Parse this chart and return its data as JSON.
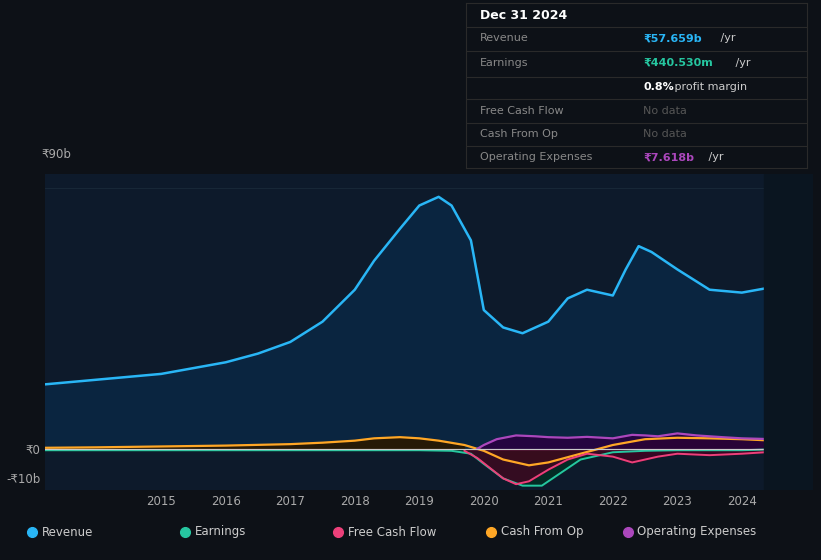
{
  "bg_color": "#0d1117",
  "chart_bg": "#0d1a2b",
  "ylim": [
    -14,
    95
  ],
  "legend": [
    {
      "label": "Revenue",
      "color": "#29b6f6"
    },
    {
      "label": "Earnings",
      "color": "#26c6a0"
    },
    {
      "label": "Free Cash Flow",
      "color": "#ec407a"
    },
    {
      "label": "Cash From Op",
      "color": "#ffa726"
    },
    {
      "label": "Operating Expenses",
      "color": "#ab47bc"
    }
  ],
  "revenue_x": [
    2013.0,
    2013.5,
    2014.0,
    2014.5,
    2015.0,
    2015.5,
    2016.0,
    2016.5,
    2017.0,
    2017.5,
    2018.0,
    2018.3,
    2018.7,
    2019.0,
    2019.3,
    2019.5,
    2019.8,
    2020.0,
    2020.3,
    2020.6,
    2021.0,
    2021.3,
    2021.6,
    2022.0,
    2022.2,
    2022.4,
    2022.6,
    2023.0,
    2023.5,
    2024.0,
    2024.5,
    2024.9
  ],
  "revenue_y": [
    22,
    23,
    24,
    25,
    26,
    28,
    30,
    33,
    37,
    44,
    55,
    65,
    76,
    84,
    87,
    84,
    72,
    48,
    42,
    40,
    44,
    52,
    55,
    53,
    62,
    70,
    68,
    62,
    55,
    54,
    56,
    57
  ],
  "cash_from_op_x": [
    2013.0,
    2014.0,
    2015.0,
    2016.0,
    2017.0,
    2017.5,
    2018.0,
    2018.3,
    2018.7,
    2019.0,
    2019.3,
    2019.7,
    2020.0,
    2020.3,
    2020.7,
    2021.0,
    2021.5,
    2022.0,
    2022.5,
    2023.0,
    2023.5,
    2024.0,
    2024.5,
    2024.9
  ],
  "cash_from_op_y": [
    0.5,
    0.7,
    1.0,
    1.3,
    1.8,
    2.3,
    3.0,
    3.8,
    4.2,
    3.8,
    3.0,
    1.5,
    -0.5,
    -3.5,
    -5.5,
    -4.5,
    -1.5,
    1.5,
    3.5,
    4.0,
    3.8,
    3.5,
    3.0,
    2.8
  ],
  "earnings_x": [
    2013.0,
    2014.0,
    2015.0,
    2016.0,
    2017.0,
    2018.0,
    2019.0,
    2019.5,
    2019.8,
    2020.0,
    2020.3,
    2020.6,
    2020.9,
    2021.2,
    2021.5,
    2022.0,
    2022.5,
    2023.0,
    2023.5,
    2024.0,
    2024.9
  ],
  "earnings_y": [
    -0.3,
    -0.3,
    -0.3,
    -0.3,
    -0.3,
    -0.3,
    -0.3,
    -0.5,
    -1.5,
    -5.0,
    -10.0,
    -12.5,
    -12.5,
    -8.0,
    -3.5,
    -1.0,
    -0.5,
    -0.3,
    -0.3,
    -0.3,
    0.3
  ],
  "fcf_x": [
    2019.7,
    2019.9,
    2020.1,
    2020.3,
    2020.5,
    2020.7,
    2021.0,
    2021.3,
    2021.6,
    2022.0,
    2022.3,
    2022.7,
    2023.0,
    2023.5,
    2024.0,
    2024.5,
    2024.9
  ],
  "fcf_y": [
    -0.5,
    -3.0,
    -6.5,
    -10.0,
    -12.0,
    -11.0,
    -7.0,
    -3.5,
    -1.5,
    -2.5,
    -4.5,
    -2.5,
    -1.5,
    -2.0,
    -1.5,
    -0.8,
    -0.5
  ],
  "opex_x": [
    2019.9,
    2020.0,
    2020.2,
    2020.5,
    2020.8,
    2021.0,
    2021.3,
    2021.6,
    2022.0,
    2022.3,
    2022.5,
    2022.7,
    2023.0,
    2023.3,
    2023.7,
    2024.0,
    2024.5,
    2024.9
  ],
  "opex_y": [
    0.2,
    1.5,
    3.5,
    4.8,
    4.5,
    4.2,
    4.0,
    4.3,
    3.8,
    5.0,
    4.8,
    4.5,
    5.5,
    4.8,
    4.2,
    3.8,
    3.5,
    3.8
  ]
}
